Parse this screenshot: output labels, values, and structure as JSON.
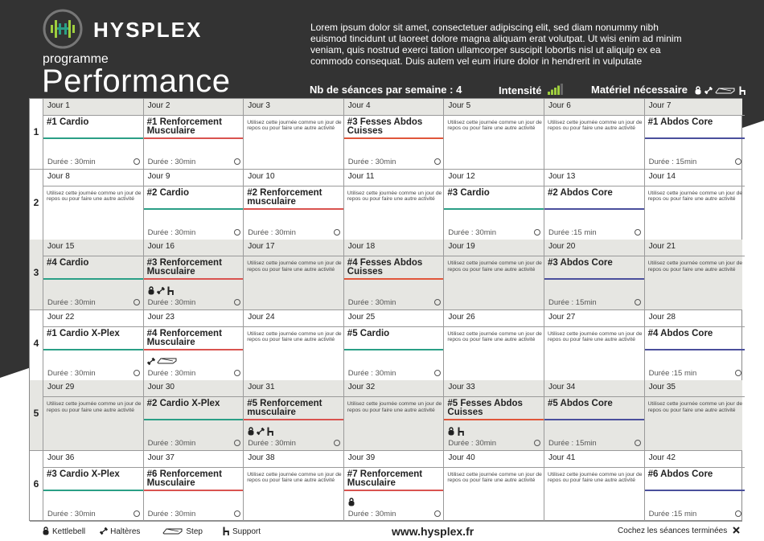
{
  "brand": {
    "name": "HYSPLEX"
  },
  "header": {
    "subtitle": "programme",
    "title": "Performance",
    "intro": "Lorem ipsum dolor sit amet, consectetuer adipiscing elit, sed diam nonummy nibh euismod tincidunt ut laoreet dolore magna aliquam erat volutpat. Ut wisi enim ad minim veniam, quis nostrud exerci tation ullamcorper suscipit lobortis nisl ut aliquip ex ea commodo consequat. Duis autem vel eum iriure dolor in hendrerit in vulputate",
    "sessions_label": "Nb de séances par semaine : 4",
    "intensity_label": "Intensité",
    "intensity_level": 4,
    "intensity_max": 5,
    "equipment_label": "Matériel nécessaire"
  },
  "colors": {
    "dark": "#333333",
    "accent": "#9fcf3e",
    "cardio": "#2a9f86",
    "muscu": "#d9534f",
    "fesses": "#e0563a",
    "abdos": "#4a4f9c"
  },
  "rest_text": "Utilisez cette journée comme un jour de repos ou pour faire une autre activité",
  "weeks": [
    {
      "num": "1",
      "shade": false,
      "days": [
        {
          "day": "Jour 1",
          "name": "#1 Cardio",
          "type": "cardio",
          "duration": "Durée : 30min",
          "equip": []
        },
        {
          "day": "Jour 2",
          "name": "#1 Renforcement Musculaire",
          "type": "muscu",
          "duration": "Durée : 30min",
          "equip": []
        },
        {
          "day": "Jour 3",
          "rest": true
        },
        {
          "day": "Jour 4",
          "name": "#3 Fesses Abdos Cuisses",
          "type": "fesses",
          "duration": "Durée : 30min",
          "equip": []
        },
        {
          "day": "Jour 5",
          "rest": true
        },
        {
          "day": "Jour 6",
          "rest": true
        },
        {
          "day": "Jour 7",
          "name": "#1 Abdos Core",
          "type": "abdos",
          "duration": "Durée : 15min",
          "equip": []
        }
      ]
    },
    {
      "num": "2",
      "shade": false,
      "days": [
        {
          "day": "Jour 8",
          "rest": true
        },
        {
          "day": "Jour 9",
          "name": "#2 Cardio",
          "type": "cardio",
          "duration": "Durée : 30min",
          "equip": []
        },
        {
          "day": "Jour 10",
          "name": "#2 Renforcement musculaire",
          "type": "muscu",
          "duration": "Durée : 30min",
          "equip": []
        },
        {
          "day": "Jour 11",
          "rest": true
        },
        {
          "day": "Jour 12",
          "name": "#3 Cardio",
          "type": "cardio",
          "duration": "Durée : 30min",
          "equip": []
        },
        {
          "day": "Jour 13",
          "name": "#2 Abdos Core",
          "type": "abdos",
          "duration": "Durée :15 min",
          "equip": []
        },
        {
          "day": "Jour 14",
          "rest": true
        }
      ]
    },
    {
      "num": "3",
      "shade": true,
      "days": [
        {
          "day": "Jour 15",
          "name": "#4 Cardio",
          "type": "cardio",
          "duration": "Durée : 30min",
          "equip": []
        },
        {
          "day": "Jour 16",
          "name": "#3 Renforcement Musculaire",
          "type": "muscu",
          "duration": "Durée : 30min",
          "equip": [
            "kettlebell",
            "halteres",
            "support"
          ]
        },
        {
          "day": "Jour 17",
          "rest": true
        },
        {
          "day": "Jour 18",
          "name": "#4 Fesses Abdos Cuisses",
          "type": "fesses",
          "duration": "Durée : 30min",
          "equip": []
        },
        {
          "day": "Jour 19",
          "rest": true
        },
        {
          "day": "Jour 20",
          "name": "#3 Abdos Core",
          "type": "abdos",
          "duration": "Durée : 15min",
          "equip": []
        },
        {
          "day": "Jour 21",
          "rest": true
        }
      ]
    },
    {
      "num": "4",
      "shade": false,
      "days": [
        {
          "day": "Jour 22",
          "name": "#1 Cardio X-Plex",
          "type": "cardio",
          "duration": "Durée : 30min",
          "equip": []
        },
        {
          "day": "Jour 23",
          "name": "#4 Renforcement Musculaire",
          "type": "muscu",
          "duration": "Durée : 30min",
          "equip": [
            "halteres",
            "step"
          ]
        },
        {
          "day": "Jour 24",
          "rest": true
        },
        {
          "day": "Jour 25",
          "name": "#5 Cardio",
          "type": "cardio",
          "duration": "Durée : 30min",
          "equip": []
        },
        {
          "day": "Jour 26",
          "rest": true
        },
        {
          "day": "Jour 27",
          "rest": true
        },
        {
          "day": "Jour 28",
          "name": "#4 Abdos Core",
          "type": "abdos",
          "duration": "Durée :15 min",
          "equip": []
        }
      ]
    },
    {
      "num": "5",
      "shade": true,
      "days": [
        {
          "day": "Jour 29",
          "rest": true
        },
        {
          "day": "Jour 30",
          "name": "#2 Cardio X-Plex",
          "type": "cardio",
          "duration": "Durée : 30min",
          "equip": []
        },
        {
          "day": "Jour 31",
          "name": "#5 Renforcement musculaire",
          "type": "muscu",
          "duration": "Durée : 30min",
          "equip": [
            "kettlebell",
            "halteres",
            "support"
          ]
        },
        {
          "day": "Jour 32",
          "rest": true
        },
        {
          "day": "Jour 33",
          "name": "#5 Fesses Abdos Cuisses",
          "type": "fesses",
          "duration": "Durée : 30min",
          "equip": [
            "kettlebell",
            "support"
          ]
        },
        {
          "day": "Jour 34",
          "name": "#5 Abdos Core",
          "type": "abdos",
          "duration": "Durée : 15min",
          "equip": []
        },
        {
          "day": "Jour 35",
          "rest": true
        }
      ]
    },
    {
      "num": "6",
      "shade": false,
      "days": [
        {
          "day": "Jour 36",
          "name": "#3 Cardio X-Plex",
          "type": "cardio",
          "duration": "Durée : 30min",
          "equip": []
        },
        {
          "day": "Jour 37",
          "name": "#6 Renforcement Musculaire",
          "type": "muscu",
          "duration": "Durée : 30min",
          "equip": []
        },
        {
          "day": "Jour 38",
          "rest": true
        },
        {
          "day": "Jour 39",
          "name": "#7 Renforcement Musculaire",
          "type": "muscu",
          "duration": "Durée : 30min",
          "equip": [
            "kettlebell"
          ]
        },
        {
          "day": "Jour 40",
          "rest": true
        },
        {
          "day": "Jour 41",
          "rest": true
        },
        {
          "day": "Jour 42",
          "name": "#6 Abdos Core",
          "type": "abdos",
          "duration": "Durée :15 min",
          "equip": []
        }
      ]
    }
  ],
  "footer": {
    "legend": [
      {
        "icon": "kettlebell",
        "label": "Kettlebell"
      },
      {
        "icon": "halteres",
        "label": "Haltères"
      },
      {
        "icon": "step",
        "label": "Step"
      },
      {
        "icon": "support",
        "label": "Support"
      }
    ],
    "website": "www.hysplex.fr",
    "check_note": "Cochez les séances terminées"
  }
}
